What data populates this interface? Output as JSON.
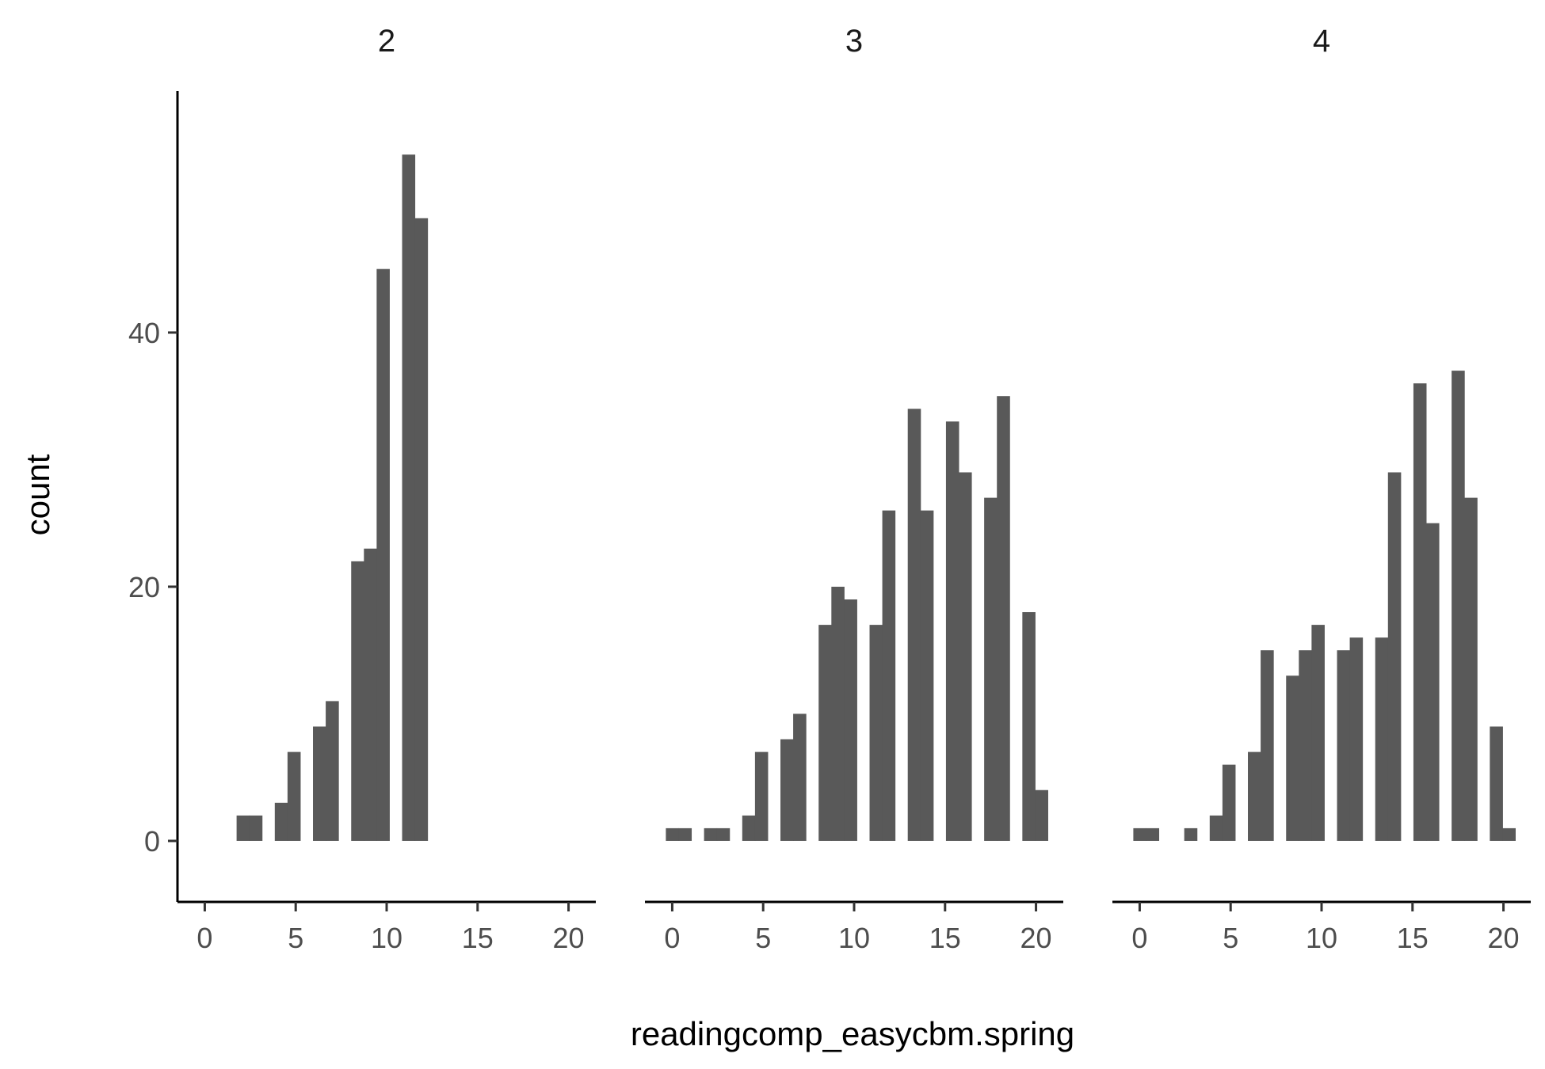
{
  "chart_data": {
    "type": "bar",
    "subtype": "histogram",
    "xlabel": "readingcomp_easycbm.spring",
    "ylabel": "count",
    "xlim": [
      -1.5,
      21.5
    ],
    "ylim": [
      -4.8,
      59
    ],
    "xticks": [
      0,
      5,
      10,
      15,
      20
    ],
    "yticks": [
      0,
      20,
      40
    ],
    "bar_color": "#595959",
    "bin_centers": [
      0,
      0.7,
      1.4,
      2.1,
      2.8,
      3.5,
      4.2,
      4.9,
      5.6,
      6.3,
      7.0,
      7.7,
      8.4,
      9.1,
      9.8,
      10.5,
      11.2,
      11.9,
      12.6,
      13.3,
      14.0,
      14.7,
      15.4,
      16.1,
      16.8,
      17.5,
      18.2,
      18.9,
      19.6,
      20.3
    ],
    "bin_width": 0.7,
    "facets": [
      {
        "title": "2",
        "counts": [
          0,
          0,
          0,
          2,
          2,
          0,
          3,
          7,
          0,
          9,
          11,
          0,
          22,
          23,
          45,
          0,
          54,
          49,
          0,
          0,
          0,
          0,
          0,
          0,
          0,
          0,
          0,
          0,
          0,
          0
        ]
      },
      {
        "title": "3",
        "counts": [
          1,
          1,
          0,
          1,
          1,
          0,
          2,
          7,
          0,
          8,
          10,
          0,
          17,
          20,
          19,
          0,
          17,
          26,
          0,
          34,
          26,
          0,
          33,
          29,
          0,
          27,
          35,
          0,
          18,
          4
        ]
      },
      {
        "title": "4",
        "counts": [
          1,
          1,
          0,
          0,
          1,
          0,
          2,
          6,
          0,
          7,
          15,
          0,
          13,
          15,
          17,
          0,
          15,
          16,
          0,
          16,
          29,
          0,
          36,
          25,
          0,
          37,
          27,
          0,
          9,
          1
        ]
      }
    ]
  }
}
